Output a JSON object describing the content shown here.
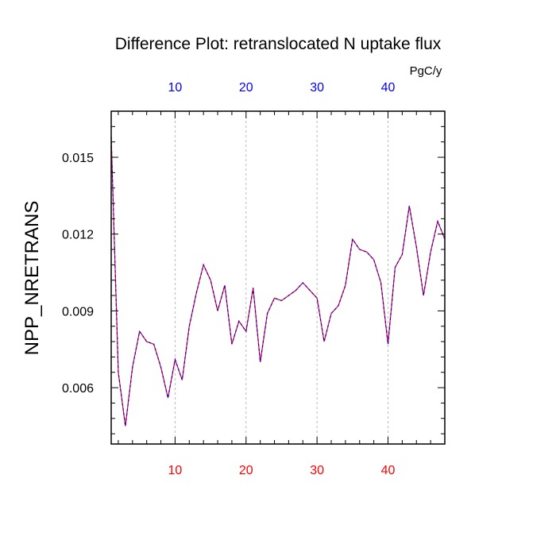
{
  "chart_data": {
    "type": "line",
    "title": "Difference Plot: retranslocated N uptake flux",
    "ylabel": "NPP_NRETRANS",
    "top_axis_unit": "PgC/y",
    "xlim": [
      1,
      48
    ],
    "ylim": [
      0.0038,
      0.0168
    ],
    "x_ticks": [
      10,
      20,
      30,
      40
    ],
    "x_tick_labels": [
      "10",
      "20",
      "30",
      "40"
    ],
    "y_ticks": [
      0.006,
      0.009,
      0.012,
      0.015
    ],
    "y_tick_labels": [
      "0.006",
      "0.009",
      "0.012",
      "0.015"
    ],
    "grid": "vertical-dashed",
    "colors": {
      "bottom_tick_labels": "#ff0000",
      "top_tick_labels": "#0000ff",
      "series_line_1": "#ff0000",
      "series_line_2": "#0000ff",
      "grid": "#bbbbbb"
    },
    "series": [
      {
        "x": [
          1,
          2,
          3,
          4,
          5,
          6,
          7,
          8,
          9,
          10,
          11,
          12,
          13,
          14,
          15,
          16,
          17,
          18,
          19,
          20,
          21,
          22,
          23,
          24,
          25,
          26,
          27,
          28,
          29,
          30,
          31,
          32,
          33,
          34,
          35,
          36,
          37,
          38,
          39,
          40,
          41,
          42,
          43,
          44,
          45,
          46,
          47,
          48
        ],
        "values": [
          0.0158,
          0.0066,
          0.0045,
          0.0068,
          0.0082,
          0.0078,
          0.0077,
          0.0068,
          0.0056,
          0.0071,
          0.0063,
          0.0084,
          0.0097,
          0.0108,
          0.0102,
          0.009,
          0.01,
          0.0077,
          0.0086,
          0.0082,
          0.0099,
          0.007,
          0.0089,
          0.0095,
          0.0094,
          0.0096,
          0.0098,
          0.0101,
          0.0098,
          0.0095,
          0.0078,
          0.0089,
          0.0092,
          0.01,
          0.0118,
          0.0114,
          0.0113,
          0.011,
          0.0101,
          0.0077,
          0.0107,
          0.0112,
          0.0131,
          0.0115,
          0.0096,
          0.0113,
          0.0125,
          0.0118
        ]
      }
    ]
  }
}
